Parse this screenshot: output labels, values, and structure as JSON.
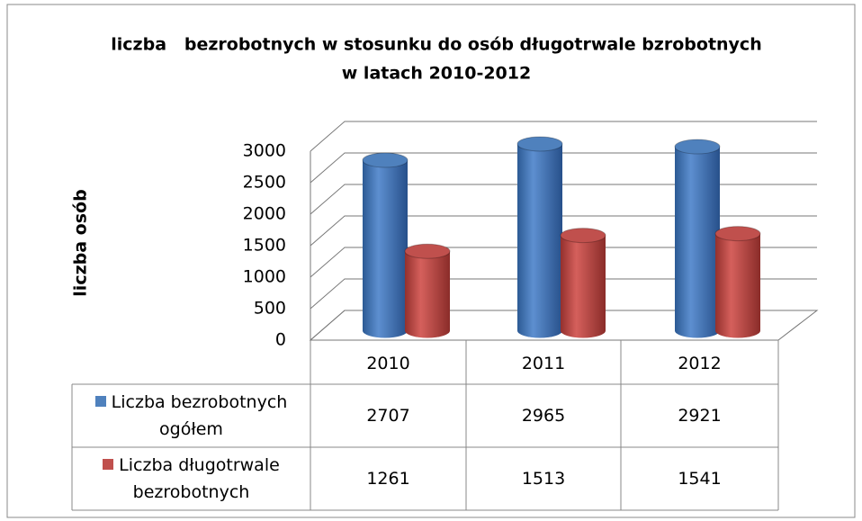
{
  "chart_data": {
    "type": "bar3d",
    "title": [
      "liczba   bezrobotnych w stosunku do osób długotrwale bzrobotnych",
      "w latach 2010-2012"
    ],
    "y_label": "liczba osób",
    "categories": [
      "2010",
      "2011",
      "2012"
    ],
    "series": [
      {
        "name": "Liczba bezrobotnych ogółem",
        "color": "#4f81bd",
        "values": [
          2707,
          2965,
          2921
        ]
      },
      {
        "name": "Liczba długotrwale bezrobotnych",
        "color": "#c0504d",
        "values": [
          1261,
          1513,
          1541
        ]
      }
    ],
    "ylim": [
      0,
      3000
    ],
    "yticks": [
      0,
      500,
      1000,
      1500,
      2000,
      2500,
      3000
    ],
    "grid": true
  }
}
